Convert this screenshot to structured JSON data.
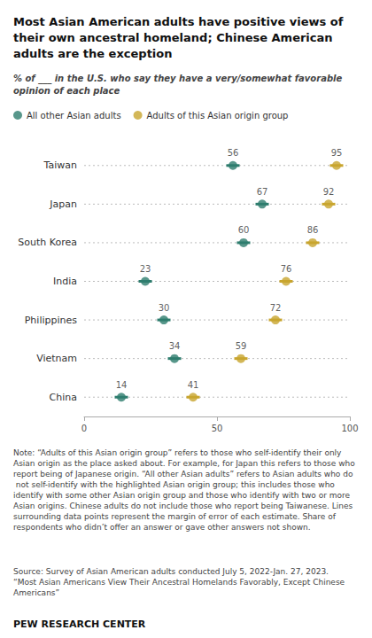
{
  "chart_data": {
    "type": "dot",
    "title": "Most Asian American adults have positive views of\ntheir own ancestral homeland; Chinese American\nadults are the exception",
    "subtitle": [
      "% of ___ in the U.S. who say they have a ",
      "very/somewhat favorable\nopinion",
      " of each place"
    ],
    "categories": [
      "Taiwan",
      "Japan",
      "South Korea",
      "India",
      "Philippines",
      "Vietnam",
      "China"
    ],
    "series": [
      {
        "name": "All other Asian adults",
        "color": "#2e7d6e",
        "values": [
          56,
          67,
          60,
          23,
          30,
          34,
          14
        ],
        "errors": [
          2.5,
          2.5,
          2.5,
          2.5,
          2.5,
          2.5,
          2.5
        ]
      },
      {
        "name": "Adults of this Asian origin group",
        "color": "#c8a52e",
        "values": [
          95,
          92,
          86,
          76,
          72,
          59,
          41
        ],
        "errors": [
          2.5,
          2.5,
          2.5,
          2.5,
          2.5,
          2.5,
          2.5
        ]
      }
    ],
    "xlim": [
      0,
      100
    ],
    "xticks": [
      0,
      50,
      100
    ],
    "orientation": "horizontal",
    "grid": true,
    "legend": "top",
    "data_labels": true,
    "annotations": [
      "Note: “Adults of this Asian origin group” refers to those who self-identify their only Asian origin as the place asked about. For example, for Japan this refers to those who report being of Japanese origin. “All other Asian adults” refers to Asian adults who do not self-identify with the highlighted Asian origin group; this includes those who identify with some other Asian origin group and those who identify with two or more Asian origins. Chinese adults do not include those who report being Taiwanese. Lines surrounding data points represent the margin of error of each estimate. Share of respondents who didn’t offer an answer or gave other answers not shown.",
      "Source: Survey of Asian American adults conducted July 5, 2022-Jan. 27, 2023.\n“Most Asian Americans View Their Ancestral Homelands Favorably, Except Chinese Americans”",
      "PEW RESEARCH CENTER"
    ]
  }
}
